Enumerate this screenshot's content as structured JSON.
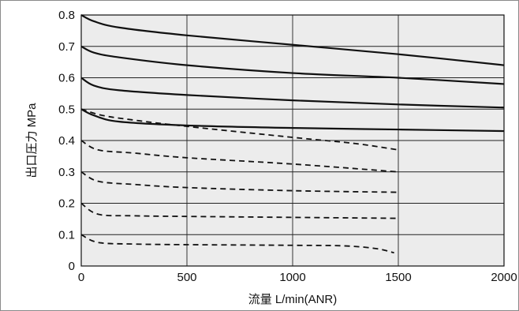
{
  "chart_data": {
    "type": "line",
    "xlabel": "流量 L/min(ANR)",
    "ylabel": "出口圧力 MPa",
    "xlim": [
      0,
      2000
    ],
    "ylim": [
      0,
      0.8
    ],
    "x_ticks": [
      "0",
      "500",
      "1000",
      "1500",
      "2000"
    ],
    "y_ticks": [
      "0",
      "0.1",
      "0.2",
      "0.3",
      "0.4",
      "0.5",
      "0.6",
      "0.7",
      "0.8"
    ],
    "grid": true,
    "plot_background": "#ececec",
    "line_color": "#111111",
    "series": [
      {
        "style": "solid",
        "points": [
          [
            0,
            0.8
          ],
          [
            60,
            0.78
          ],
          [
            180,
            0.76
          ],
          [
            500,
            0.735
          ],
          [
            1000,
            0.705
          ],
          [
            1500,
            0.675
          ],
          [
            2000,
            0.64
          ]
        ]
      },
      {
        "style": "solid",
        "points": [
          [
            0,
            0.7
          ],
          [
            60,
            0.68
          ],
          [
            180,
            0.665
          ],
          [
            500,
            0.64
          ],
          [
            1000,
            0.615
          ],
          [
            1500,
            0.6
          ],
          [
            2000,
            0.58
          ]
        ]
      },
      {
        "style": "solid",
        "points": [
          [
            0,
            0.6
          ],
          [
            60,
            0.575
          ],
          [
            180,
            0.56
          ],
          [
            500,
            0.545
          ],
          [
            1000,
            0.528
          ],
          [
            1500,
            0.515
          ],
          [
            2000,
            0.505
          ]
        ]
      },
      {
        "style": "solid",
        "points": [
          [
            0,
            0.5
          ],
          [
            60,
            0.48
          ],
          [
            180,
            0.46
          ],
          [
            500,
            0.448
          ],
          [
            1000,
            0.44
          ],
          [
            1500,
            0.435
          ],
          [
            2000,
            0.43
          ]
        ]
      },
      {
        "style": "dashed",
        "points": [
          [
            0,
            0.5
          ],
          [
            100,
            0.48
          ],
          [
            250,
            0.465
          ],
          [
            500,
            0.445
          ],
          [
            1000,
            0.41
          ],
          [
            1300,
            0.39
          ],
          [
            1500,
            0.37
          ]
        ]
      },
      {
        "style": "dashed",
        "points": [
          [
            0,
            0.4
          ],
          [
            80,
            0.37
          ],
          [
            250,
            0.36
          ],
          [
            500,
            0.345
          ],
          [
            1000,
            0.325
          ],
          [
            1500,
            0.3
          ]
        ]
      },
      {
        "style": "dashed",
        "points": [
          [
            0,
            0.3
          ],
          [
            80,
            0.27
          ],
          [
            250,
            0.26
          ],
          [
            500,
            0.25
          ],
          [
            1000,
            0.24
          ],
          [
            1500,
            0.235
          ]
        ]
      },
      {
        "style": "dashed",
        "points": [
          [
            0,
            0.2
          ],
          [
            80,
            0.165
          ],
          [
            250,
            0.16
          ],
          [
            500,
            0.158
          ],
          [
            1000,
            0.155
          ],
          [
            1500,
            0.152
          ]
        ]
      },
      {
        "style": "dashed",
        "points": [
          [
            0,
            0.1
          ],
          [
            80,
            0.075
          ],
          [
            250,
            0.07
          ],
          [
            500,
            0.068
          ],
          [
            1000,
            0.066
          ],
          [
            1250,
            0.064
          ],
          [
            1400,
            0.055
          ],
          [
            1480,
            0.042
          ]
        ]
      }
    ]
  }
}
